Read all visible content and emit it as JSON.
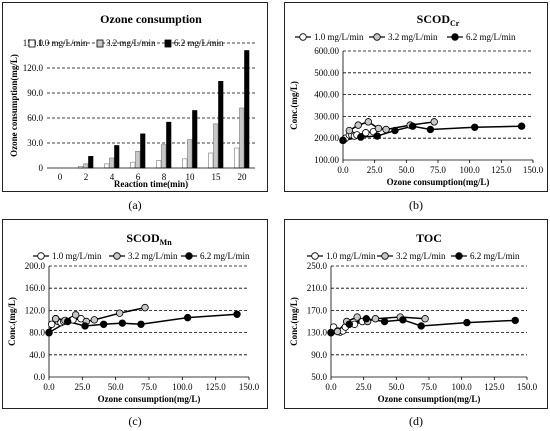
{
  "charts": [
    {
      "type": "bar",
      "panel_label": "(a)",
      "title": "Ozone consumption",
      "xlabel": "Reaction time(min)",
      "ylabel": "Ozone consumption(mg/L)",
      "categories": [
        "0",
        "2",
        "4",
        "6",
        "8",
        "10",
        "15",
        "20"
      ],
      "ylim": [
        0,
        150
      ],
      "yticks": [
        "0",
        "30.0",
        "60.0",
        "90.0",
        "120.0",
        "150.0"
      ],
      "grid": "y",
      "legend": "top",
      "series": [
        {
          "name": "1.0 mg/L/min",
          "color": "#ffffff",
          "values": [
            0,
            2,
            5,
            7,
            9,
            11,
            18,
            24
          ]
        },
        {
          "name": "3.2 mg/L/min",
          "color": "#c8c8c8",
          "values": [
            0,
            5,
            12,
            20,
            28,
            34,
            53,
            72
          ]
        },
        {
          "name": "6.2 mg/L/min",
          "color": "#000000",
          "values": [
            0,
            14,
            27,
            41,
            55,
            69,
            104,
            141
          ]
        }
      ]
    },
    {
      "type": "line",
      "panel_label": "(b)",
      "title": "SCOD",
      "title_sub": "Cr",
      "xlabel": "Ozone consumption(mg/L)",
      "ylabel": "Conc.(mg/L)",
      "xlim": [
        0,
        150
      ],
      "ylim": [
        100,
        600
      ],
      "xticks": [
        "0.0",
        "25.0",
        "50.0",
        "75.0",
        "100.0",
        "125.0",
        "150.0"
      ],
      "yticks": [
        "100.00",
        "200.00",
        "300.00",
        "400.00",
        "500.00",
        "600.00"
      ],
      "grid": "y",
      "legend": "top",
      "series": [
        {
          "name": "1.0 mg/L/min",
          "marker": "#ffffff",
          "x": [
            0,
            2,
            5,
            7,
            9,
            11,
            18,
            24
          ],
          "y": [
            190,
            200,
            215,
            215,
            210,
            215,
            225,
            230
          ]
        },
        {
          "name": "3.2 mg/L/min",
          "marker": "#c8c8c8",
          "x": [
            0,
            5,
            12,
            20,
            28,
            34,
            53,
            72
          ],
          "y": [
            190,
            235,
            260,
            275,
            245,
            240,
            260,
            275
          ]
        },
        {
          "name": "6.2 mg/L/min",
          "marker": "#000000",
          "x": [
            0,
            14,
            27,
            41,
            55,
            69,
            104,
            141
          ],
          "y": [
            190,
            205,
            210,
            235,
            255,
            240,
            250,
            255
          ]
        }
      ]
    },
    {
      "type": "line",
      "panel_label": "(c)",
      "title": "SCOD",
      "title_sub": "Mn",
      "xlabel": "Ozone consumption(mg/L)",
      "ylabel": "Conc.(mg/L)",
      "xlim": [
        0,
        150
      ],
      "ylim": [
        0,
        200
      ],
      "xticks": [
        "0.0",
        "25.0",
        "50.0",
        "75.0",
        "100.0",
        "125.0",
        "150.0"
      ],
      "yticks": [
        "0.0",
        "40.0",
        "80.0",
        "120.0",
        "160.0",
        "200.0"
      ],
      "grid": "y",
      "legend": "top",
      "series": [
        {
          "name": "1.0 mg/L/min",
          "marker": "#ffffff",
          "x": [
            0,
            2,
            5,
            7,
            9,
            11,
            18,
            24
          ],
          "y": [
            80,
            95,
            105,
            100,
            98,
            100,
            103,
            105
          ]
        },
        {
          "name": "3.2 mg/L/min",
          "marker": "#c8c8c8",
          "x": [
            0,
            5,
            12,
            20,
            28,
            34,
            53,
            72
          ],
          "y": [
            80,
            105,
            102,
            112,
            100,
            103,
            115,
            125
          ]
        },
        {
          "name": "6.2 mg/L/min",
          "marker": "#000000",
          "x": [
            0,
            14,
            27,
            41,
            55,
            69,
            104,
            141
          ],
          "y": [
            80,
            100,
            92,
            95,
            97,
            95,
            107,
            113
          ]
        }
      ]
    },
    {
      "type": "line",
      "panel_label": "(d)",
      "title": "TOC",
      "xlabel": "Ozone consumption(mg/L)",
      "ylabel": "Conc.(mg/L)",
      "xlim": [
        0,
        150
      ],
      "ylim": [
        50,
        250
      ],
      "xticks": [
        "0.0",
        "25.0",
        "50.0",
        "75.0",
        "100.0",
        "125.0",
        "150.0"
      ],
      "yticks": [
        "50.0",
        "90.0",
        "130.0",
        "170.0",
        "210.0",
        "250.0"
      ],
      "grid": "y",
      "legend": "top",
      "series": [
        {
          "name": "1.0 mg/L/min",
          "marker": "#ffffff",
          "x": [
            0,
            2,
            5,
            7,
            9,
            11,
            18,
            24
          ],
          "y": [
            130,
            140,
            133,
            131,
            133,
            140,
            145,
            150
          ]
        },
        {
          "name": "3.2 mg/L/min",
          "marker": "#c8c8c8",
          "x": [
            0,
            5,
            12,
            20,
            28,
            34,
            53,
            72
          ],
          "y": [
            130,
            132,
            150,
            158,
            150,
            155,
            158,
            155
          ]
        },
        {
          "name": "6.2 mg/L/min",
          "marker": "#000000",
          "x": [
            0,
            14,
            27,
            41,
            55,
            69,
            104,
            141
          ],
          "y": [
            130,
            145,
            155,
            150,
            153,
            142,
            148,
            152
          ]
        }
      ]
    }
  ]
}
